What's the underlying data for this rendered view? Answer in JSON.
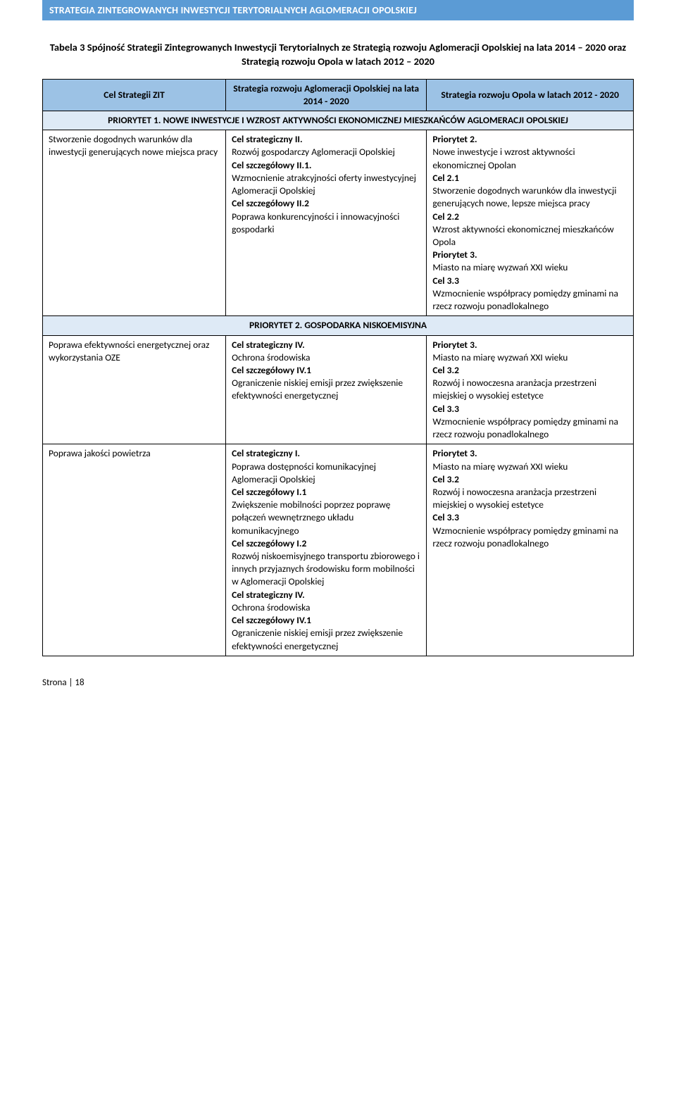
{
  "header": {
    "band": "STRATEGIA ZINTEGROWANYCH INWESTYCJI TERYTORIALNYCH AGLOMERACJI OPOLSKIEJ"
  },
  "tableTitle": "Tabela 3 Spójność Strategii Zintegrowanych Inwestycji Terytorialnych ze Strategią rozwoju Aglomeracji Opolskiej na lata 2014 – 2020 oraz Strategią rozwoju Opola w latach 2012 – 2020",
  "columns": {
    "c1": "Cel Strategii ZIT",
    "c2": "Strategia rozwoju Aglomeracji Opolskiej na lata 2014 - 2020",
    "c3": "Strategia rozwoju Opola w latach 2012 - 2020"
  },
  "priority1": {
    "label": "PRIORYTET 1. NOWE INWESTYCJE I WZROST AKTYWNOŚCI EKONOMICZNEJ MIESZKAŃCÓW AGLOMERACJI OPOLSKIEJ",
    "row1": {
      "c1": "Stworzenie dogodnych warunków dla inwestycji generujących nowe miejsca pracy",
      "c2": {
        "l1": "Cel strategiczny II.",
        "l2": "Rozwój gospodarczy Aglomeracji Opolskiej",
        "l3": "Cel szczegółowy II.1.",
        "l4": "Wzmocnienie atrakcyjności oferty inwestycyjnej Aglomeracji Opolskiej",
        "l5": "Cel szczegółowy II.2",
        "l6": "Poprawa konkurencyjności i innowacyjności gospodarki"
      },
      "c3": {
        "l1": "Priorytet 2.",
        "l2": "Nowe inwestycje i wzrost aktywności ekonomicznej Opolan",
        "l3": "Cel 2.1",
        "l4": "Stworzenie dogodnych warunków dla inwestycji generujących nowe, lepsze miejsca pracy",
        "l5": "Cel 2.2",
        "l6": "Wzrost aktywności ekonomicznej mieszkańców Opola",
        "l7": "Priorytet 3.",
        "l8": "Miasto na miarę wyzwań XXI wieku",
        "l9": "Cel 3.3",
        "l10": "Wzmocnienie współpracy pomiędzy gminami na rzecz rozwoju ponadlokalnego"
      }
    }
  },
  "priority2": {
    "label": "PRIORYTET 2. GOSPODARKA NISKOEMISYJNA",
    "row1": {
      "c1": "Poprawa efektywności energetycznej oraz wykorzystania OZE",
      "c2": {
        "l1": "Cel strategiczny IV.",
        "l2": "Ochrona środowiska",
        "l3": "Cel szczegółowy  IV.1",
        "l4": "Ograniczenie niskiej emisji przez zwiększenie efektywności energetycznej"
      },
      "c3": {
        "l1": "Priorytet 3.",
        "l2": "Miasto na miarę wyzwań XXI wieku",
        "l3": "Cel 3.2",
        "l4": "Rozwój i nowoczesna aranżacja przestrzeni miejskiej o wysokiej estetyce",
        "l5": "Cel 3.3",
        "l6": "Wzmocnienie współpracy pomiędzy gminami na rzecz rozwoju ponadlokalnego"
      }
    },
    "row2": {
      "c1": "Poprawa jakości powietrza",
      "c2": {
        "l1": "Cel strategiczny I.",
        "l2": "Poprawa dostępności komunikacyjnej Aglomeracji Opolskiej",
        "l3": "Cel szczegółowy I.1",
        "l4": "Zwiększenie mobilności poprzez poprawę połączeń wewnętrznego układu komunikacyjnego",
        "l5": "Cel szczegółowy I.2",
        "l6": "Rozwój niskoemisyjnego transportu zbiorowego i innych przyjaznych środowisku form mobilności w Aglomeracji Opolskiej",
        "l7": "Cel strategiczny IV.",
        "l8": "Ochrona środowiska",
        "l9": "Cel szczegółowy  IV.1",
        "l10": "Ograniczenie niskiej emisji przez zwiększenie efektywności energetycznej"
      },
      "c3": {
        "l1": "Priorytet 3.",
        "l2": "Miasto na miarę wyzwań XXI wieku",
        "l3": "Cel 3.2",
        "l4": "Rozwój i nowoczesna aranżacja przestrzeni miejskiej o wysokiej estetyce",
        "l5": "Cel 3.3",
        "l6": "Wzmocnienie współpracy pomiędzy gminami na rzecz rozwoju ponadlokalnego"
      }
    }
  },
  "footer": {
    "pageLabel": "Strona | 18"
  },
  "style": {
    "headerBg": "#5b9bd5",
    "colHeaderBg": "#9cc2e5",
    "sectionBg": "#deeaf6",
    "borderColor": "#000000",
    "fontBody": 13.5,
    "fontTitle": 14.5
  }
}
